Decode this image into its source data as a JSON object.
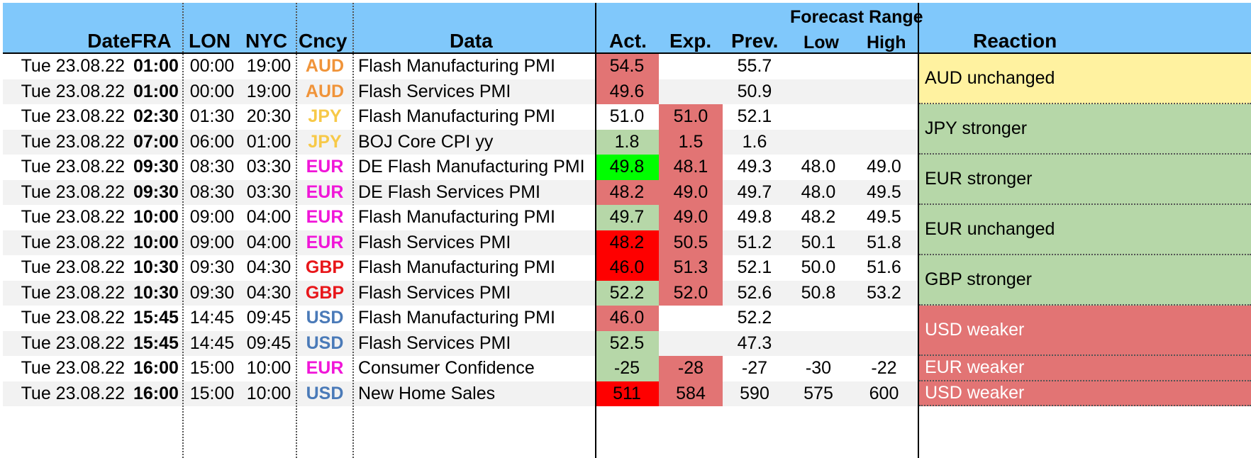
{
  "header": {
    "date": "Date",
    "fra": "FRA",
    "lon": "LON",
    "nyc": "NYC",
    "cncy": "Cncy",
    "data": "Data",
    "act": "Act.",
    "exp": "Exp.",
    "prev": "Prev.",
    "forecast_range": "Forecast Range",
    "low": "Low",
    "high": "High",
    "reaction": "Reaction"
  },
  "colors": {
    "header_bg": "#80c8fb",
    "AUD": "#f0943a",
    "JPY": "#f7c948",
    "EUR": "#f016d8",
    "GBP": "#e8161a",
    "USD": "#4a7ab8",
    "red_light": "#e27474",
    "red_strong": "#fe0000",
    "green_light": "#b6d7a8",
    "green_strong": "#00fe00",
    "yellow": "#fff2a0",
    "row_alt": "#f2f2f2",
    "white": "#ffffff"
  },
  "rows": [
    {
      "date": "Tue 23.08.22",
      "fra": "01:00",
      "lon": "00:00",
      "nyc": "19:00",
      "cncy": "AUD",
      "data": "Flash Manufacturing PMI",
      "act": "54.5",
      "exp": "",
      "prev": "55.7",
      "low": "",
      "high": "",
      "act_style": "red_light",
      "exp_style": "none"
    },
    {
      "date": "Tue 23.08.22",
      "fra": "01:00",
      "lon": "00:00",
      "nyc": "19:00",
      "cncy": "AUD",
      "data": "Flash Services PMI",
      "act": "49.6",
      "exp": "",
      "prev": "50.9",
      "low": "",
      "high": "",
      "act_style": "red_light",
      "exp_style": "none"
    },
    {
      "date": "Tue 23.08.22",
      "fra": "02:30",
      "lon": "01:30",
      "nyc": "20:30",
      "cncy": "JPY",
      "data": "Flash Manufacturing PMI",
      "act": "51.0",
      "exp": "51.0",
      "prev": "52.1",
      "low": "",
      "high": "",
      "act_style": "none",
      "exp_style": "red_light"
    },
    {
      "date": "Tue 23.08.22",
      "fra": "07:00",
      "lon": "06:00",
      "nyc": "01:00",
      "cncy": "JPY",
      "data": "BOJ Core CPI yy",
      "act": "1.8",
      "exp": "1.5",
      "prev": "1.6",
      "low": "",
      "high": "",
      "act_style": "green_light",
      "exp_style": "red_light"
    },
    {
      "date": "Tue 23.08.22",
      "fra": "09:30",
      "lon": "08:30",
      "nyc": "03:30",
      "cncy": "EUR",
      "data": "DE Flash Manufacturing PMI",
      "act": "49.8",
      "exp": "48.1",
      "prev": "49.3",
      "low": "48.0",
      "high": "49.0",
      "act_style": "green_strong",
      "exp_style": "red_light"
    },
    {
      "date": "Tue 23.08.22",
      "fra": "09:30",
      "lon": "08:30",
      "nyc": "03:30",
      "cncy": "EUR",
      "data": "DE Flash Services PMI",
      "act": "48.2",
      "exp": "49.0",
      "prev": "49.7",
      "low": "48.0",
      "high": "49.5",
      "act_style": "red_light",
      "exp_style": "red_light"
    },
    {
      "date": "Tue 23.08.22",
      "fra": "10:00",
      "lon": "09:00",
      "nyc": "04:00",
      "cncy": "EUR",
      "data": "Flash Manufacturing PMI",
      "act": "49.7",
      "exp": "49.0",
      "prev": "49.8",
      "low": "48.2",
      "high": "49.5",
      "act_style": "green_light",
      "exp_style": "red_light"
    },
    {
      "date": "Tue 23.08.22",
      "fra": "10:00",
      "lon": "09:00",
      "nyc": "04:00",
      "cncy": "EUR",
      "data": "Flash Services PMI",
      "act": "48.2",
      "exp": "50.5",
      "prev": "51.2",
      "low": "50.1",
      "high": "51.8",
      "act_style": "red_strong",
      "exp_style": "red_light"
    },
    {
      "date": "Tue 23.08.22",
      "fra": "10:30",
      "lon": "09:30",
      "nyc": "04:30",
      "cncy": "GBP",
      "data": "Flash Manufacturing PMI",
      "act": "46.0",
      "exp": "51.3",
      "prev": "52.1",
      "low": "50.0",
      "high": "51.6",
      "act_style": "red_strong",
      "exp_style": "red_light"
    },
    {
      "date": "Tue 23.08.22",
      "fra": "10:30",
      "lon": "09:30",
      "nyc": "04:30",
      "cncy": "GBP",
      "data": "Flash Services PMI",
      "act": "52.2",
      "exp": "52.0",
      "prev": "52.6",
      "low": "50.8",
      "high": "53.2",
      "act_style": "green_light",
      "exp_style": "red_light"
    },
    {
      "date": "Tue 23.08.22",
      "fra": "15:45",
      "lon": "14:45",
      "nyc": "09:45",
      "cncy": "USD",
      "data": "Flash Manufacturing PMI",
      "act": "46.0",
      "exp": "",
      "prev": "52.2",
      "low": "",
      "high": "",
      "act_style": "red_light",
      "exp_style": "none"
    },
    {
      "date": "Tue 23.08.22",
      "fra": "15:45",
      "lon": "14:45",
      "nyc": "09:45",
      "cncy": "USD",
      "data": "Flash Services PMI",
      "act": "52.5",
      "exp": "",
      "prev": "47.3",
      "low": "",
      "high": "",
      "act_style": "green_light",
      "exp_style": "none"
    },
    {
      "date": "Tue 23.08.22",
      "fra": "16:00",
      "lon": "15:00",
      "nyc": "10:00",
      "cncy": "EUR",
      "data": "Consumer Confidence",
      "act": "-25",
      "exp": "-28",
      "prev": "-27",
      "low": "-30",
      "high": "-22",
      "act_style": "green_light",
      "exp_style": "red_light"
    },
    {
      "date": "Tue 23.08.22",
      "fra": "16:00",
      "lon": "15:00",
      "nyc": "10:00",
      "cncy": "USD",
      "data": "New Home Sales",
      "act": "511",
      "exp": "584",
      "prev": "590",
      "low": "575",
      "high": "600",
      "act_style": "red_strong",
      "exp_style": "red_light"
    }
  ],
  "reactions": [
    {
      "text": "AUD unchanged",
      "start": 0,
      "span": 2,
      "style": "yellow",
      "text_color": "#000000"
    },
    {
      "text": "JPY stronger",
      "start": 2,
      "span": 2,
      "style": "green_light",
      "text_color": "#000000"
    },
    {
      "text": "EUR stronger",
      "start": 4,
      "span": 2,
      "style": "green_light",
      "text_color": "#000000"
    },
    {
      "text": "EUR unchanged",
      "start": 6,
      "span": 2,
      "style": "green_light",
      "text_color": "#000000"
    },
    {
      "text": "GBP stronger",
      "start": 8,
      "span": 2,
      "style": "green_light",
      "text_color": "#000000"
    },
    {
      "text": "USD weaker",
      "start": 10,
      "span": 2,
      "style": "red_light",
      "text_color": "#ffffff"
    },
    {
      "text": "EUR weaker",
      "start": 12,
      "span": 1,
      "style": "red_light",
      "text_color": "#ffffff"
    },
    {
      "text": "USD weaker",
      "start": 13,
      "span": 1,
      "style": "red_light",
      "text_color": "#ffffff"
    }
  ]
}
